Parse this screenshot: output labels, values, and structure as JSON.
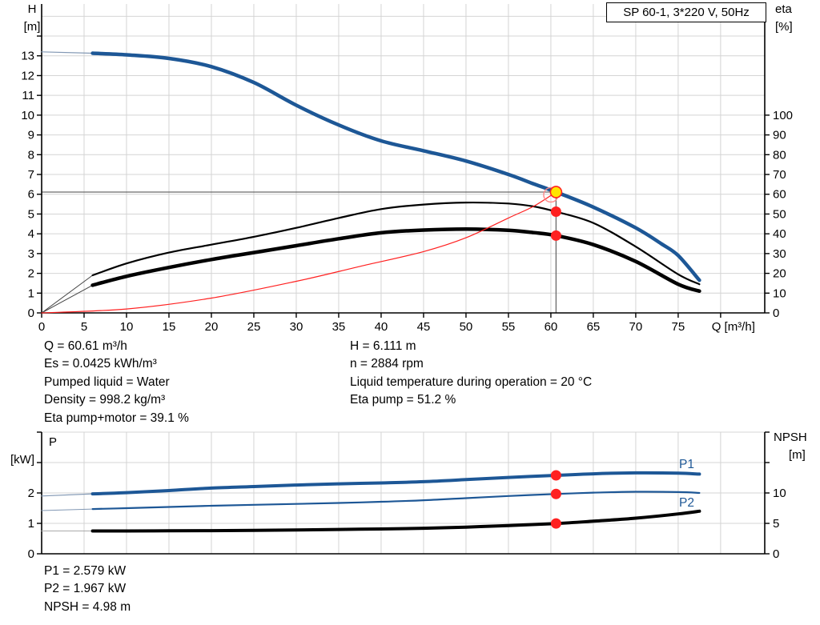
{
  "title_box": {
    "text": "SP 60-1, 3*220 V, 50Hz"
  },
  "info_panel": {
    "left": [
      "Q = 60.61 m³/h",
      "Es = 0.0425 kWh/m³",
      "Pumped liquid = Water",
      "Density = 998.2 kg/m³",
      "Eta pump+motor = 39.1 %"
    ],
    "right": [
      "H = 6.111 m",
      "n = 2884 rpm",
      "Liquid temperature during operation = 20 °C",
      "Eta pump = 51.2 %"
    ]
  },
  "results_panel": [
    "P1 = 2.579 kW",
    "P2 = 1.967 kW",
    "NPSH = 4.98 m"
  ],
  "colors": {
    "curve_blue": "#1d5796",
    "lead_blue": "#8298b4",
    "black": "#000000",
    "red": "#ff2020",
    "red_light": "#ff8888",
    "yellow": "#ffe400",
    "grid": "#d4d4d4",
    "marker_line": "#6a6a6a",
    "axis": "#000000"
  },
  "chart_data": [
    {
      "type": "line",
      "id": "hq-eta-chart",
      "title": "SP 60-1, 3*220 V, 50Hz",
      "axes": {
        "x": {
          "label": "Q [m³/h]",
          "label_q": 81.5,
          "range": [
            0,
            85.2
          ],
          "ticks_labeled": [
            0,
            5,
            10,
            15,
            20,
            25,
            30,
            35,
            40,
            45,
            50,
            55,
            60,
            65,
            70,
            75
          ],
          "ticks_unlabeled": [
            80
          ],
          "show_ticks": true
        },
        "left": {
          "label": "H",
          "unit": "[m]",
          "range": [
            0,
            15.62
          ],
          "ticks_labeled": [
            0,
            1,
            2,
            3,
            4,
            5,
            6,
            7,
            8,
            9,
            10,
            11,
            12,
            13
          ],
          "ticks_unlabeled": [
            14
          ]
        },
        "right": {
          "label": "eta",
          "unit": "[%]",
          "range": [
            0,
            156.2
          ],
          "ticks_labeled": [
            0,
            10,
            20,
            30,
            40,
            50,
            60,
            70,
            80,
            90,
            100
          ],
          "ticks_unlabeled": []
        }
      },
      "grid": {
        "x_step": 5,
        "y_step": 1
      },
      "series": [
        {
          "name": "head-curve-lead",
          "axis": "left",
          "color": "#8298b4",
          "width": 1.2,
          "points": [
            [
              0,
              13.2
            ],
            [
              6,
              13.13
            ]
          ]
        },
        {
          "name": "head-curve",
          "axis": "left",
          "color": "#1d5796",
          "width": 4.5,
          "points": [
            [
              6,
              13.13
            ],
            [
              10,
              13.05
            ],
            [
              15,
              12.87
            ],
            [
              20,
              12.45
            ],
            [
              25,
              11.65
            ],
            [
              30,
              10.5
            ],
            [
              35,
              9.5
            ],
            [
              40,
              8.7
            ],
            [
              45,
              8.2
            ],
            [
              50,
              7.68
            ],
            [
              55,
              7.0
            ],
            [
              58,
              6.52
            ],
            [
              60.61,
              6.111
            ],
            [
              65,
              5.35
            ],
            [
              70,
              4.3
            ],
            [
              73,
              3.5
            ],
            [
              75,
              2.9
            ],
            [
              77.5,
              1.65
            ]
          ]
        },
        {
          "name": "eta-pump-curve-lead",
          "axis": "right",
          "color": "#444444",
          "width": 1,
          "points": [
            [
              0,
              0
            ],
            [
              6,
              19
            ]
          ]
        },
        {
          "name": "eta-pump-curve",
          "axis": "right",
          "color": "#000000",
          "width": 2.2,
          "points": [
            [
              6,
              19
            ],
            [
              10,
              25
            ],
            [
              15,
              30.5
            ],
            [
              20,
              34.5
            ],
            [
              25,
              38.5
            ],
            [
              30,
              43
            ],
            [
              35,
              48
            ],
            [
              40,
              52.5
            ],
            [
              45,
              54.8
            ],
            [
              50,
              55.8
            ],
            [
              55,
              55.3
            ],
            [
              58,
              53.8
            ],
            [
              60.61,
              51.2
            ],
            [
              65,
              45.5
            ],
            [
              70,
              33.5
            ],
            [
              75,
              19.5
            ],
            [
              77.5,
              14.5
            ]
          ]
        },
        {
          "name": "eta-pump-motor-curve-lead",
          "axis": "right",
          "color": "#444444",
          "width": 1,
          "points": [
            [
              0,
              0
            ],
            [
              6,
              14
            ]
          ]
        },
        {
          "name": "eta-pump-motor-curve",
          "axis": "right",
          "color": "#000000",
          "width": 4.5,
          "points": [
            [
              6,
              14
            ],
            [
              10,
              18.5
            ],
            [
              15,
              23
            ],
            [
              20,
              27
            ],
            [
              25,
              30.5
            ],
            [
              30,
              34
            ],
            [
              35,
              37.5
            ],
            [
              40,
              40.5
            ],
            [
              45,
              41.9
            ],
            [
              50,
              42.4
            ],
            [
              55,
              41.8
            ],
            [
              58,
              40.6
            ],
            [
              60.61,
              39.1
            ],
            [
              65,
              34.5
            ],
            [
              70,
              26
            ],
            [
              75,
              14.5
            ],
            [
              77.5,
              11
            ]
          ]
        },
        {
          "name": "system-curve",
          "axis": "left",
          "color": "#ff2020",
          "width": 1.2,
          "points": [
            [
              0,
              0
            ],
            [
              10,
              0.2
            ],
            [
              20,
              0.75
            ],
            [
              30,
              1.6
            ],
            [
              37.5,
              2.35
            ],
            [
              45,
              3.1
            ],
            [
              50,
              3.8
            ],
            [
              55,
              4.8
            ],
            [
              58,
              5.4
            ],
            [
              60.61,
              6.111
            ]
          ]
        }
      ],
      "markers": {
        "crosshair": {
          "q": 60.61,
          "v": 6.111,
          "axis": "left"
        },
        "request_circle": {
          "q": 60.0,
          "v": 5.97,
          "axis": "left",
          "r": 9
        },
        "duty_point": {
          "q": 60.61,
          "v": 6.111,
          "axis": "left",
          "r": 7
        },
        "dots": [
          {
            "q": 60.61,
            "v": 51.2,
            "axis": "right"
          },
          {
            "q": 60.61,
            "v": 39.1,
            "axis": "right"
          }
        ]
      },
      "curve_labels": []
    },
    {
      "type": "line",
      "id": "power-npsh-chart",
      "axes": {
        "x": {
          "label": "",
          "range": [
            0,
            85.2
          ],
          "ticks_labeled": [],
          "ticks_unlabeled": [],
          "show_ticks": false
        },
        "left": {
          "label": "P",
          "unit": "[kW]",
          "range": [
            0,
            4
          ],
          "ticks_labeled": [
            0,
            1,
            2
          ],
          "ticks_unlabeled": [
            3,
            4
          ]
        },
        "right": {
          "label": "NPSH",
          "unit": "[m]",
          "range": [
            0,
            20
          ],
          "ticks_labeled": [
            0,
            5,
            10
          ],
          "ticks_unlabeled": [
            15,
            20
          ]
        }
      },
      "grid": {
        "x_step": 5,
        "y_step": 1
      },
      "series": [
        {
          "name": "p1-curve-lead",
          "axis": "left",
          "color": "#8298b4",
          "width": 1.2,
          "points": [
            [
              0,
              1.9
            ],
            [
              6,
              1.97
            ]
          ]
        },
        {
          "name": "p1-curve",
          "axis": "left",
          "color": "#1d5796",
          "width": 4,
          "points": [
            [
              6,
              1.97
            ],
            [
              10,
              2.01
            ],
            [
              15,
              2.08
            ],
            [
              20,
              2.16
            ],
            [
              25,
              2.21
            ],
            [
              30,
              2.26
            ],
            [
              35,
              2.3
            ],
            [
              40,
              2.33
            ],
            [
              45,
              2.37
            ],
            [
              50,
              2.44
            ],
            [
              55,
              2.51
            ],
            [
              60.61,
              2.579
            ],
            [
              65,
              2.63
            ],
            [
              70,
              2.66
            ],
            [
              75,
              2.65
            ],
            [
              77.5,
              2.62
            ]
          ]
        },
        {
          "name": "p2-curve-lead",
          "axis": "left",
          "color": "#8298b4",
          "width": 1,
          "points": [
            [
              0,
              1.42
            ],
            [
              6,
              1.47
            ]
          ]
        },
        {
          "name": "p2-curve",
          "axis": "left",
          "color": "#1d5796",
          "width": 2.2,
          "points": [
            [
              6,
              1.47
            ],
            [
              10,
              1.5
            ],
            [
              15,
              1.54
            ],
            [
              20,
              1.58
            ],
            [
              25,
              1.61
            ],
            [
              30,
              1.64
            ],
            [
              35,
              1.67
            ],
            [
              40,
              1.71
            ],
            [
              45,
              1.76
            ],
            [
              50,
              1.83
            ],
            [
              55,
              1.9
            ],
            [
              60.61,
              1.967
            ],
            [
              65,
              2.01
            ],
            [
              70,
              2.04
            ],
            [
              75,
              2.03
            ],
            [
              77.5,
              2.0
            ]
          ]
        },
        {
          "name": "npsh-curve-lead",
          "axis": "right",
          "color": "#aaaaaa",
          "width": 1,
          "points": [
            [
              0,
              3.75
            ],
            [
              6,
              3.75
            ]
          ]
        },
        {
          "name": "npsh-curve",
          "axis": "right",
          "color": "#000000",
          "width": 4,
          "points": [
            [
              6,
              3.75
            ],
            [
              10,
              3.75
            ],
            [
              15,
              3.77
            ],
            [
              20,
              3.8
            ],
            [
              25,
              3.85
            ],
            [
              30,
              3.92
            ],
            [
              35,
              4.0
            ],
            [
              40,
              4.08
            ],
            [
              45,
              4.2
            ],
            [
              50,
              4.38
            ],
            [
              55,
              4.65
            ],
            [
              60.61,
              4.98
            ],
            [
              65,
              5.35
            ],
            [
              70,
              5.85
            ],
            [
              75,
              6.55
            ],
            [
              77.5,
              7.0
            ]
          ]
        }
      ],
      "markers": {
        "dots": [
          {
            "q": 60.61,
            "v": 2.579,
            "axis": "left"
          },
          {
            "q": 60.61,
            "v": 1.967,
            "axis": "left"
          },
          {
            "q": 60.61,
            "v": 4.98,
            "axis": "right"
          }
        ]
      },
      "curve_labels": [
        {
          "text": "P1",
          "q": 76,
          "v": 2.95,
          "axis": "left"
        },
        {
          "text": "P2",
          "q": 76,
          "v": 1.68,
          "axis": "left"
        }
      ]
    }
  ]
}
